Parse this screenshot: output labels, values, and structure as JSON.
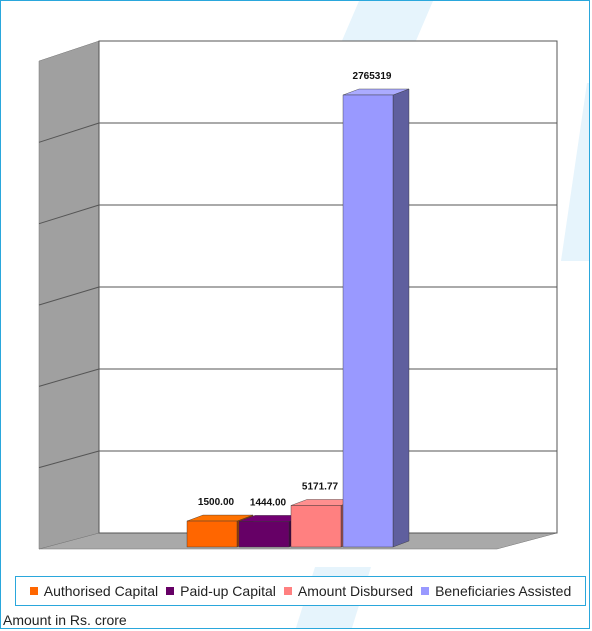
{
  "chart_data": {
    "type": "bar",
    "categories": [
      "Authorised Capital",
      "Paid-up Capital",
      "Amount Disbursed",
      "Beneficiaries Assisted"
    ],
    "values": [
      1500.0,
      1444.0,
      5171.77,
      2765319
    ],
    "data_labels": [
      "1500.00",
      "1444.00",
      "5171.77",
      "2765319"
    ],
    "colors": [
      "#ff6600",
      "#660066",
      "#ff8080",
      "#9999ff"
    ],
    "title": "",
    "xlabel": "",
    "ylabel": "",
    "grid": true,
    "three_d": true,
    "legend_position": "bottom",
    "note": "Amount in Rs. crore"
  }
}
